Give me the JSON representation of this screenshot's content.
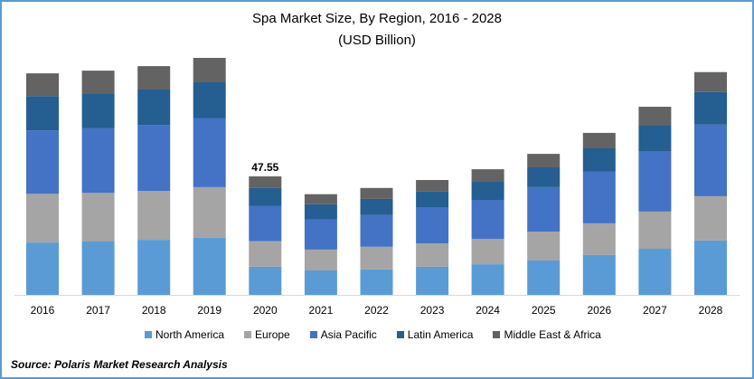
{
  "chart_data": {
    "type": "bar",
    "stacked": true,
    "title": "Spa Market Size, By Region, 2016 - 2028",
    "subtitle": "(USD Billion)",
    "xlabel": "",
    "ylabel": "",
    "ylim": [
      0,
      95
    ],
    "grid": false,
    "legend_position": "bottom",
    "categories": [
      "2016",
      "2017",
      "2018",
      "2019",
      "2020",
      "2021",
      "2022",
      "2023",
      "2024",
      "2025",
      "2026",
      "2027",
      "2028"
    ],
    "series": [
      {
        "name": "North America",
        "color": "#5b9bd5",
        "values": [
          21.0,
          21.4,
          22.1,
          22.9,
          11.3,
          9.8,
          10.2,
          11.3,
          12.3,
          13.8,
          16.0,
          18.5,
          21.8
        ]
      },
      {
        "name": "Europe",
        "color": "#a5a5a5",
        "values": [
          19.6,
          19.6,
          19.6,
          20.3,
          10.2,
          8.4,
          9.1,
          9.4,
          10.2,
          11.6,
          12.7,
          14.9,
          17.8
        ]
      },
      {
        "name": "Asia Pacific",
        "color": "#4472c4",
        "values": [
          25.4,
          25.8,
          26.5,
          27.6,
          14.1,
          12.0,
          12.7,
          14.2,
          15.6,
          17.8,
          20.7,
          24.3,
          28.7
        ]
      },
      {
        "name": "Latin America",
        "color": "#255e91",
        "values": [
          13.8,
          13.8,
          14.2,
          14.5,
          7.25,
          6.2,
          6.5,
          6.5,
          7.6,
          8.0,
          9.4,
          10.5,
          13.1
        ]
      },
      {
        "name": "Middle East & Africa",
        "color": "#636363",
        "values": [
          9.1,
          9.4,
          9.4,
          9.8,
          4.7,
          4.0,
          4.4,
          4.7,
          4.7,
          5.4,
          6.2,
          7.3,
          8.0
        ]
      }
    ],
    "annotations": [
      {
        "category": "2020",
        "text": "47.55"
      }
    ]
  },
  "source": "Source: Polaris  Market Research Analysis"
}
